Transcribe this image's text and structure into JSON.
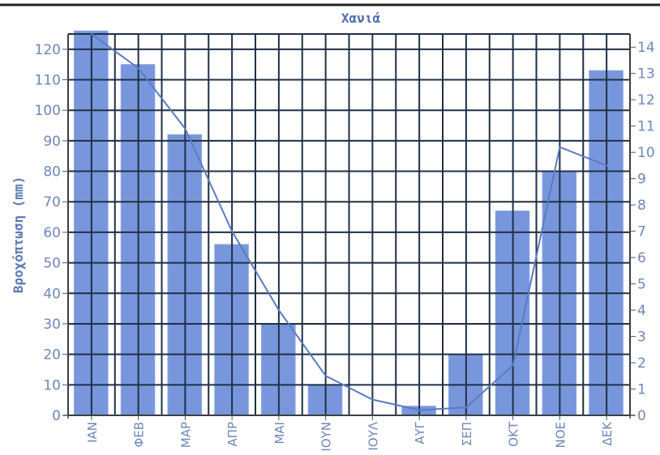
{
  "chart_data": {
    "type": "bar",
    "title": "Χανιά",
    "ylabel": "Βροχόπτωση (mm)",
    "categories": [
      "ΙΑΝ",
      "ΦΕΒ",
      "ΜΑΡ",
      "ΑΠΡ",
      "ΜΑΙ",
      "ΙΟΥΝ",
      "ΙΟΥΛ",
      "ΑΥΓ",
      "ΣΕΠ",
      "ΟΚΤ",
      "ΝΟΕ",
      "ΔΕΚ"
    ],
    "series": [
      {
        "type": "bar",
        "axis": "left",
        "values": [
          126,
          115,
          92,
          56,
          30,
          10,
          0,
          3,
          20,
          67,
          80,
          113
        ]
      },
      {
        "type": "line",
        "axis": "right",
        "values": [
          14.5,
          13.2,
          10.9,
          7.0,
          4.0,
          1.5,
          0.6,
          0.2,
          0.3,
          1.9,
          10.2,
          9.5
        ]
      }
    ],
    "ylim": [
      0,
      125
    ],
    "y_ticks": [
      0,
      10,
      20,
      30,
      40,
      50,
      60,
      70,
      80,
      90,
      100,
      110,
      120
    ],
    "y2lim": [
      0,
      14.5
    ],
    "y2_ticks": [
      0,
      1,
      2,
      3,
      4,
      5,
      6,
      7,
      8,
      9,
      10,
      11,
      12,
      13,
      14
    ],
    "y2_tick_labels": [
      "0",
      "1",
      "2",
      "3",
      "4",
      "5",
      "6",
      "7",
      "8",
      "9",
      "10",
      "11",
      "12",
      "13",
      "14"
    ],
    "grid": true,
    "colors": {
      "bar": "#7896dc",
      "line": "#5a7bc4",
      "grid": "#1f3045",
      "text": "#6f86b8",
      "title": "#4f6fb0"
    }
  }
}
